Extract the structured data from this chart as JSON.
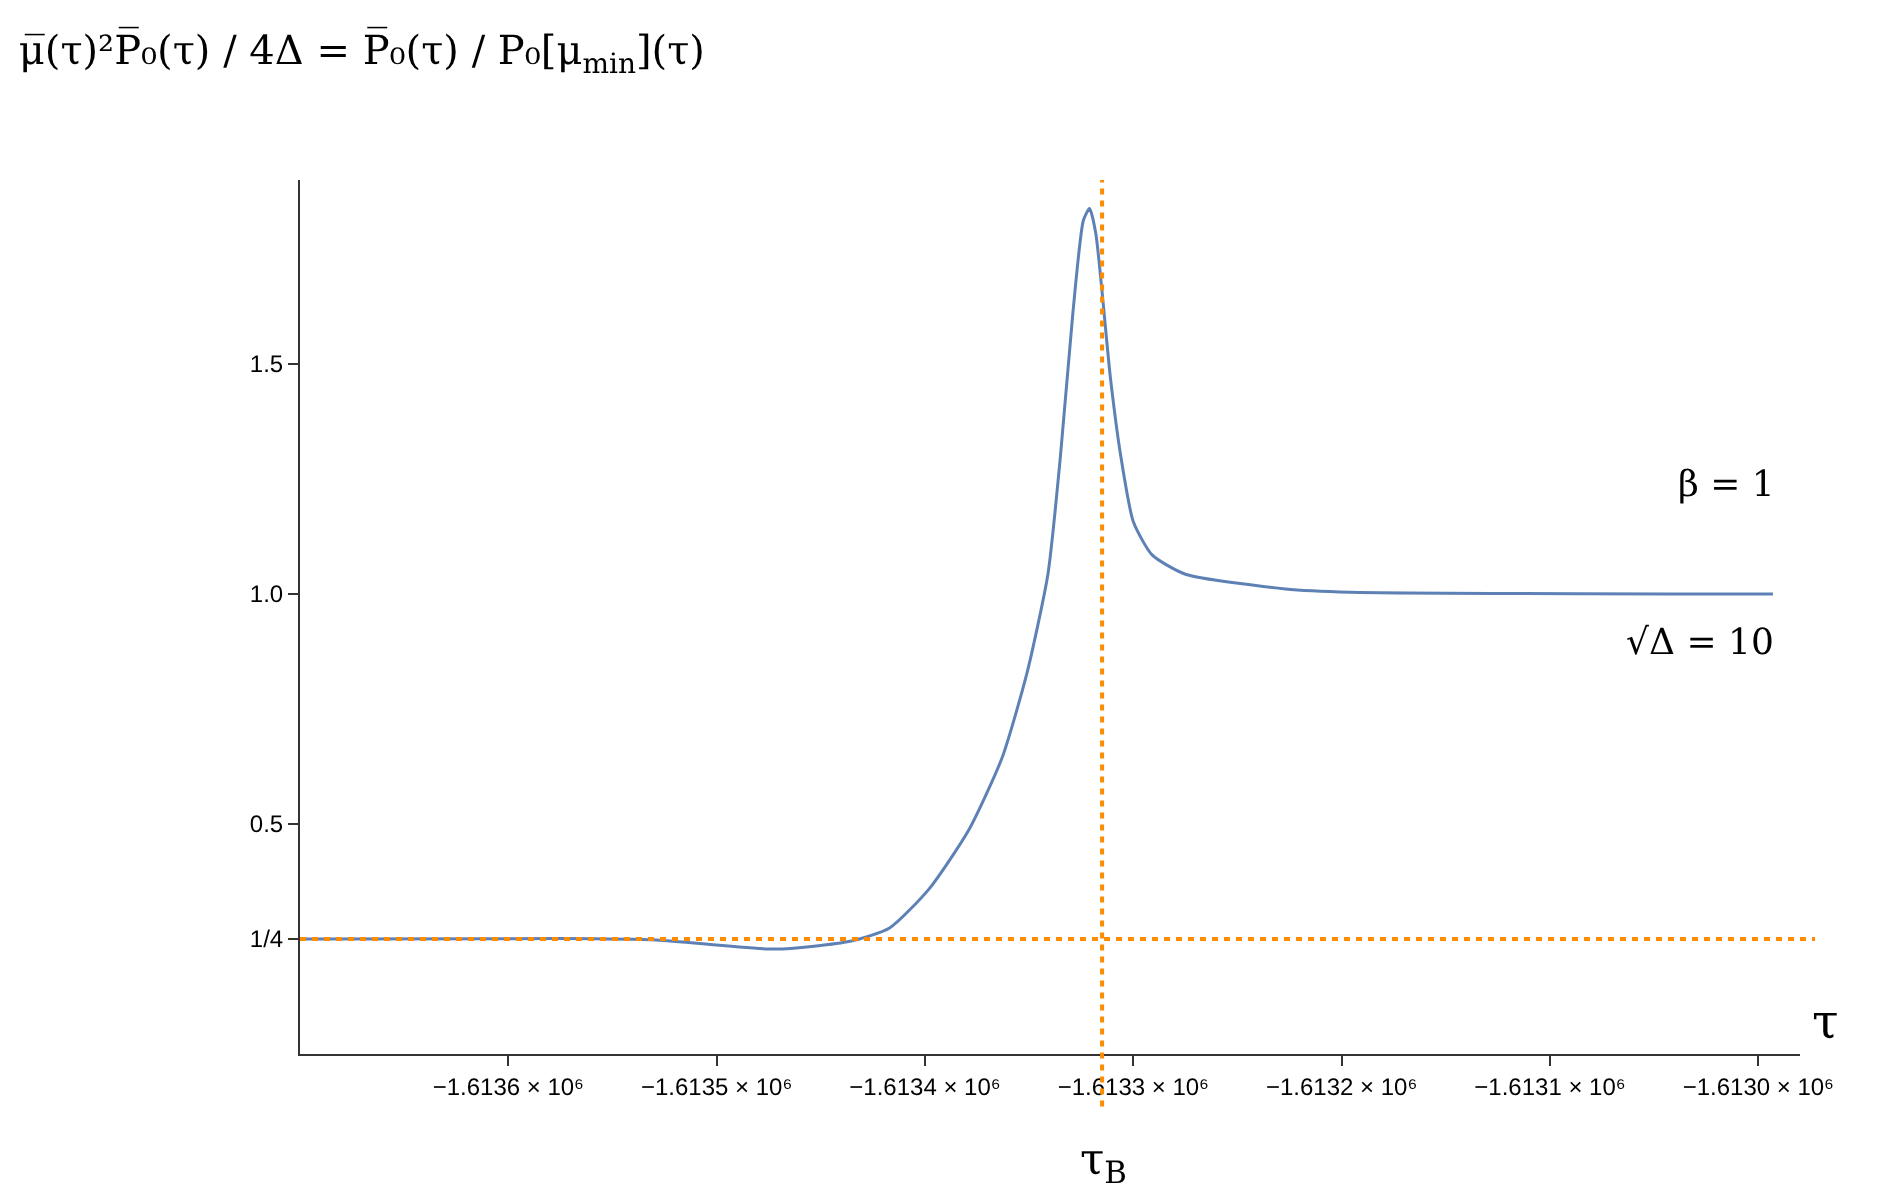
{
  "chart_data": {
    "type": "line",
    "title": "μ̅(τ)²P̅₀(τ) / 4Δ = P̅₀(τ) / P₀[μ$_{min}$](τ)",
    "xlabel": "τ",
    "x": [
      -1613700,
      -1613576,
      -1613529,
      -1613472,
      -1613436,
      -1613417,
      -1613398,
      -1613379,
      -1613363,
      -1613351,
      -1613341,
      -1613335,
      -1613329,
      -1613324,
      -1613321,
      -1613318,
      -1613311,
      -1613306,
      -1613300,
      -1613291,
      -1613275,
      -1613227,
      -1613196,
      -1612993
    ],
    "series": [
      {
        "color": "#5e81b5",
        "values": [
          0.25,
          0.251,
          0.248,
          0.228,
          0.245,
          0.274,
          0.359,
          0.487,
          0.644,
          0.829,
          1.043,
          1.299,
          1.612,
          1.812,
          1.838,
          1.783,
          1.47,
          1.299,
          1.157,
          1.085,
          1.043,
          1.011,
          1.004,
          1.0
        ]
      }
    ],
    "xlim": [
      -1613700,
      -1612980
    ],
    "ylim": [
      0,
      1.9
    ],
    "xticks": [
      {
        "value": -1613600,
        "label": "−1.6136 × 10⁶"
      },
      {
        "value": -1613500,
        "label": "−1.6135 × 10⁶"
      },
      {
        "value": -1613400,
        "label": "−1.6134 × 10⁶"
      },
      {
        "value": -1613300,
        "label": "−1.6133 × 10⁶"
      },
      {
        "value": -1613200,
        "label": "−1.6132 × 10⁶"
      },
      {
        "value": -1613100,
        "label": "−1.6131 × 10⁶"
      },
      {
        "value": -1613000,
        "label": "−1.6130 × 10⁶"
      }
    ],
    "yticks": [
      {
        "value": 0.25,
        "label": "1/4"
      },
      0.5,
      {
        "value": 1.0,
        "label": "1.0"
      },
      1.5
    ],
    "ref_lines": [
      {
        "axis": "x",
        "value": -1613315,
        "label": "τ$_{B}$",
        "color": "#ff8c00",
        "line_style": "dotted"
      },
      {
        "axis": "y",
        "value": 0.25,
        "color": "#ff8c00",
        "line_style": "dotted"
      }
    ],
    "annotations": [
      "β = 1",
      "√Δ = 10"
    ],
    "legend": false,
    "marker": "none",
    "line_style": "solid"
  }
}
